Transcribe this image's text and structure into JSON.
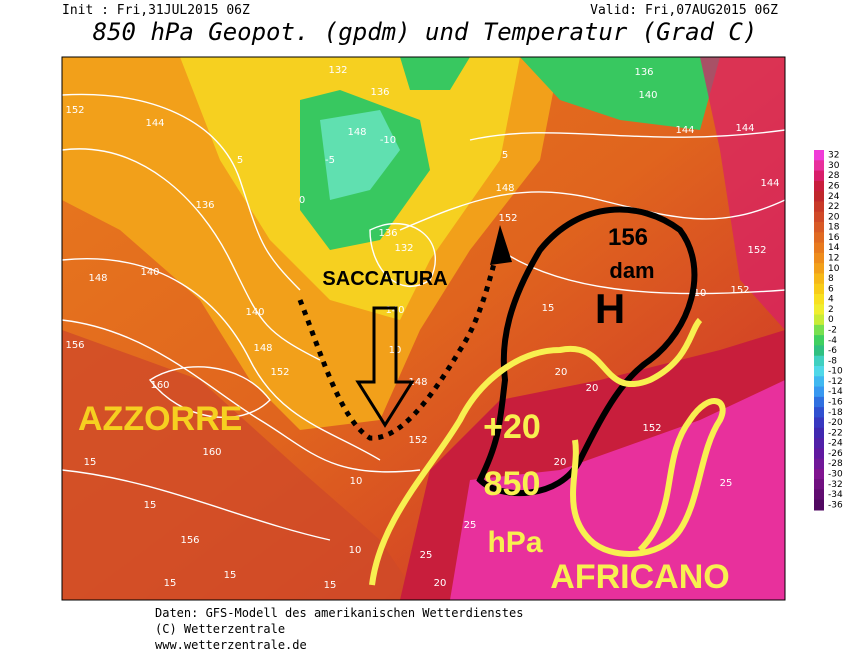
{
  "header": {
    "init": "Init : Fri,31JUL2015 06Z",
    "valid": "Valid: Fri,07AUG2015 06Z",
    "title": "850 hPa Geopot. (gpdm) und Temperatur (Grad C)"
  },
  "annotations": {
    "trough": "SACCATURA",
    "azores": "AZZORRE",
    "height": "156",
    "unit": "dam",
    "high": "H",
    "temp": "+20",
    "level": "850",
    "level_unit": "hPa",
    "african": "AFRICANO"
  },
  "legend": {
    "ticks": [
      32,
      30,
      28,
      26,
      24,
      22,
      20,
      18,
      16,
      14,
      12,
      10,
      8,
      6,
      4,
      2,
      0,
      -2,
      -4,
      -6,
      -8,
      -10,
      -12,
      -14,
      -16,
      -18,
      -20,
      -22,
      -24,
      -26,
      -28,
      -30,
      -32,
      -34,
      -36
    ],
    "colors": [
      "#f03cd8",
      "#e8309c",
      "#d81e6a",
      "#c81e3c",
      "#c0282c",
      "#c83a28",
      "#d04a28",
      "#d85a26",
      "#e06a22",
      "#e87a1e",
      "#ee8c1c",
      "#f2a01a",
      "#f6b818",
      "#f8cc18",
      "#f8e020",
      "#f0ee30",
      "#c8ec38",
      "#78e050",
      "#40d060",
      "#30c080",
      "#40d0c0",
      "#50d8e8",
      "#40b8f0",
      "#3898f0",
      "#3070e0",
      "#3050d0",
      "#3838c0",
      "#4028b0",
      "#5020a8",
      "#6018a0",
      "#701898",
      "#801490",
      "#701080",
      "#600c70",
      "#500860"
    ]
  },
  "contour_labels": [
    "152",
    "144",
    "136",
    "148",
    "140",
    "156",
    "160",
    "160",
    "15",
    "15",
    "156",
    "15",
    "15",
    "140",
    "148",
    "152",
    "132",
    "136",
    "148",
    "136",
    "132",
    "140",
    "148",
    "152",
    "10",
    "10",
    "136",
    "140",
    "144",
    "144",
    "144",
    "148",
    "152",
    "152",
    "152",
    "15",
    "20",
    "20",
    "152",
    "20",
    "25",
    "25",
    "25",
    "20",
    "15",
    "10",
    "5",
    "0",
    "-10",
    "-5",
    "5",
    "10"
  ],
  "footer": [
    "Daten: GFS-Modell des amerikanischen Wetterdienstes",
    "(C) Wetterzentrale",
    "www.wetterzentrale.de"
  ]
}
